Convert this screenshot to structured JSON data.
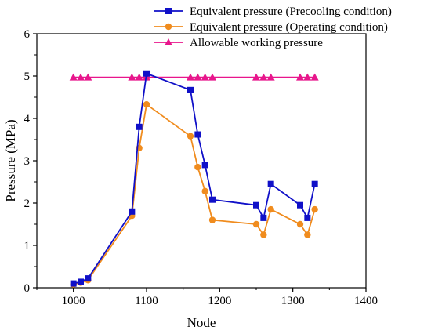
{
  "chart_data": {
    "type": "line",
    "xlabel": "Node",
    "ylabel": "Pressure (MPa)",
    "xlim": [
      950,
      1400
    ],
    "ylim": [
      0,
      6
    ],
    "x_ticks": [
      1000,
      1100,
      1200,
      1300,
      1400
    ],
    "y_ticks": [
      0,
      1,
      2,
      3,
      4,
      5,
      6
    ],
    "grid": false,
    "legend_position": "top-right",
    "series": [
      {
        "name": "Equivalent pressure (Precooling condition)",
        "color": "#1010c8",
        "marker": "square",
        "x": [
          1000,
          1010,
          1020,
          1080,
          1090,
          1100,
          1160,
          1170,
          1180,
          1190,
          1250,
          1260,
          1270,
          1310,
          1320,
          1330
        ],
        "y": [
          0.1,
          0.14,
          0.22,
          1.8,
          3.8,
          5.06,
          4.67,
          3.62,
          2.9,
          2.08,
          1.95,
          1.65,
          2.45,
          1.95,
          1.65,
          2.45
        ]
      },
      {
        "name": "Equivalent pressure (Operating condition)",
        "color": "#f08c1e",
        "marker": "circle",
        "x": [
          1000,
          1010,
          1020,
          1080,
          1090,
          1100,
          1160,
          1170,
          1180,
          1190,
          1250,
          1260,
          1270,
          1310,
          1320,
          1330
        ],
        "y": [
          0.08,
          0.12,
          0.18,
          1.7,
          3.3,
          4.33,
          3.58,
          2.85,
          2.28,
          1.6,
          1.5,
          1.25,
          1.85,
          1.5,
          1.25,
          1.85
        ]
      },
      {
        "name": "Allowable working pressure",
        "color": "#e8168c",
        "marker": "triangle",
        "x": [
          1000,
          1010,
          1020,
          1080,
          1090,
          1100,
          1160,
          1170,
          1180,
          1190,
          1250,
          1260,
          1270,
          1310,
          1320,
          1330
        ],
        "y": [
          4.97,
          4.97,
          4.97,
          4.97,
          4.97,
          4.97,
          4.97,
          4.97,
          4.97,
          4.97,
          4.97,
          4.97,
          4.97,
          4.97,
          4.97,
          4.97
        ]
      }
    ]
  }
}
